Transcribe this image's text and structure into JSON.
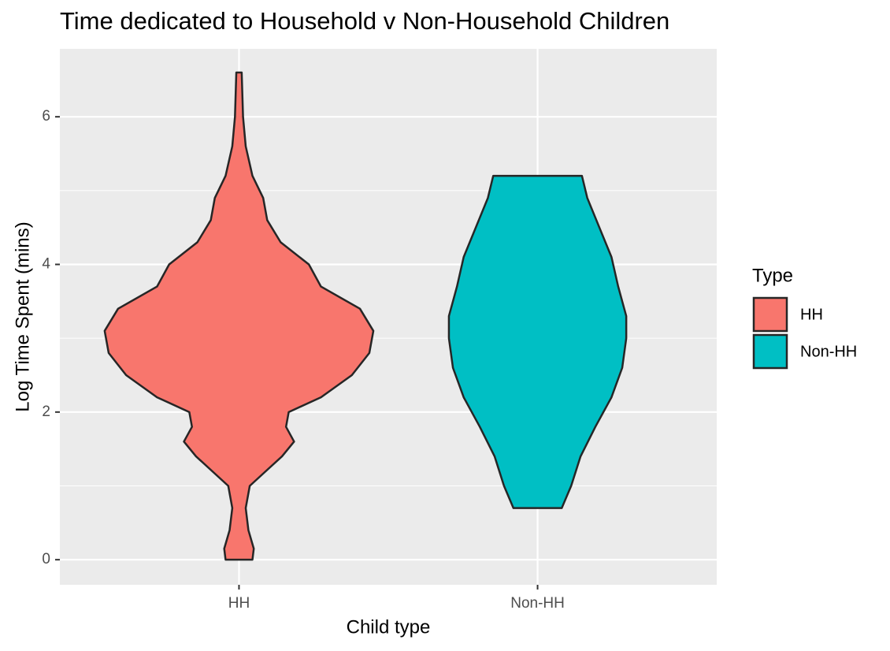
{
  "chart_data": {
    "type": "violin",
    "title": "Time dedicated to Household v Non-Household Children",
    "x_label": "Child type",
    "y_label": "Log Time Spent (mins)",
    "categories": [
      "HH",
      "Non-HH"
    ],
    "legend_title": "Type",
    "legend_position": "right",
    "grid": true,
    "ylim": [
      -0.34,
      6.92
    ],
    "yticks": [
      0,
      2,
      4,
      6
    ],
    "series": [
      {
        "name": "HH",
        "color": "#f8766d",
        "y": [
          0,
          0.15,
          0.4,
          0.7,
          1.0,
          1.2,
          1.4,
          1.6,
          1.8,
          2.0,
          2.2,
          2.5,
          2.8,
          3.1,
          3.4,
          3.7,
          4.0,
          4.3,
          4.6,
          4.9,
          5.2,
          5.6,
          6.0,
          6.6
        ],
        "width": [
          0.1,
          0.11,
          0.07,
          0.05,
          0.08,
          0.2,
          0.32,
          0.41,
          0.35,
          0.37,
          0.61,
          0.84,
          0.97,
          1.0,
          0.9,
          0.61,
          0.52,
          0.31,
          0.21,
          0.18,
          0.1,
          0.05,
          0.03,
          0.02
        ]
      },
      {
        "name": "Non-HH",
        "color": "#00bfc4",
        "y": [
          0.7,
          1.0,
          1.4,
          1.8,
          2.2,
          2.6,
          3.0,
          3.3,
          3.7,
          4.1,
          4.5,
          4.9,
          5.2
        ],
        "width": [
          0.18,
          0.25,
          0.32,
          0.43,
          0.55,
          0.63,
          0.66,
          0.66,
          0.6,
          0.55,
          0.46,
          0.37,
          0.33
        ]
      }
    ]
  }
}
